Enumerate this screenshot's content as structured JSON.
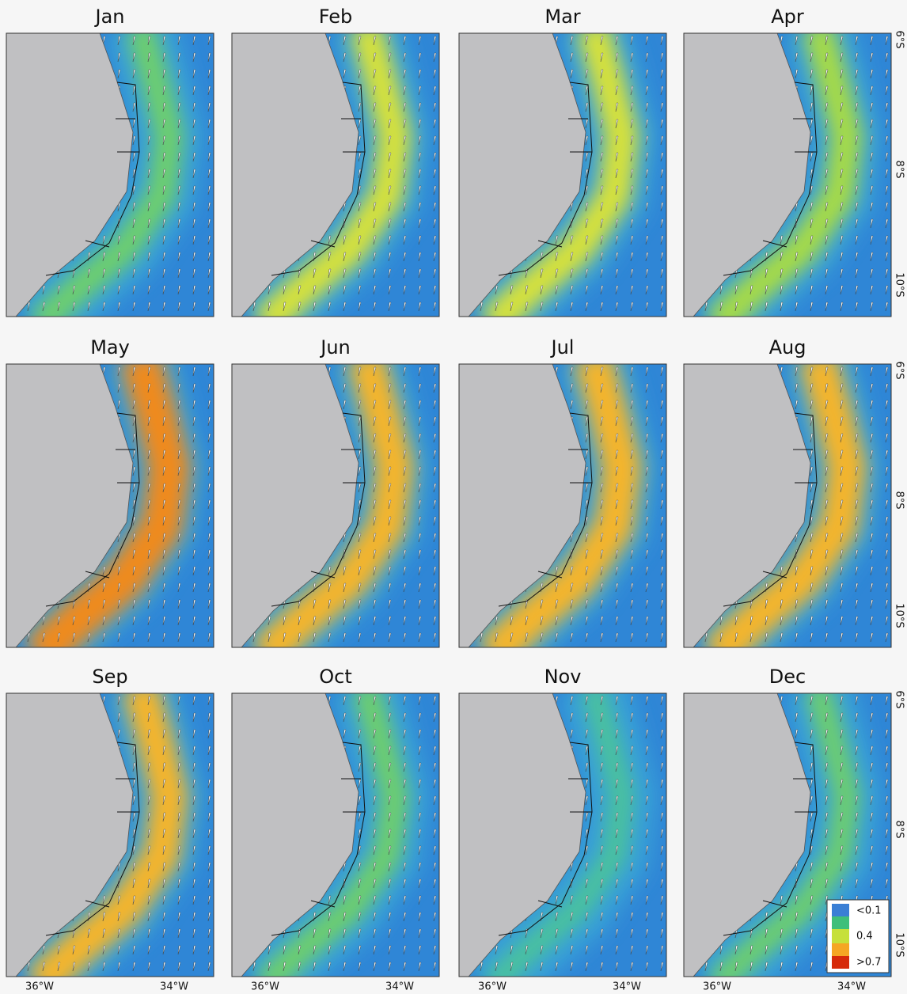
{
  "panels": [
    {
      "title": "Jan"
    },
    {
      "title": "Feb"
    },
    {
      "title": "Mar"
    },
    {
      "title": "Apr"
    },
    {
      "title": "May"
    },
    {
      "title": "Jun"
    },
    {
      "title": "Jul"
    },
    {
      "title": "Aug"
    },
    {
      "title": "Sep"
    },
    {
      "title": "Oct"
    },
    {
      "title": "Nov"
    },
    {
      "title": "Dec"
    }
  ],
  "x_axis_labels": [
    "36°W",
    "34°W"
  ],
  "y_axis_labels": [
    "6°S",
    "8°S",
    "10°S"
  ],
  "legend": {
    "labels": [
      "<0.1",
      "0.4",
      ">0.7"
    ]
  }
}
